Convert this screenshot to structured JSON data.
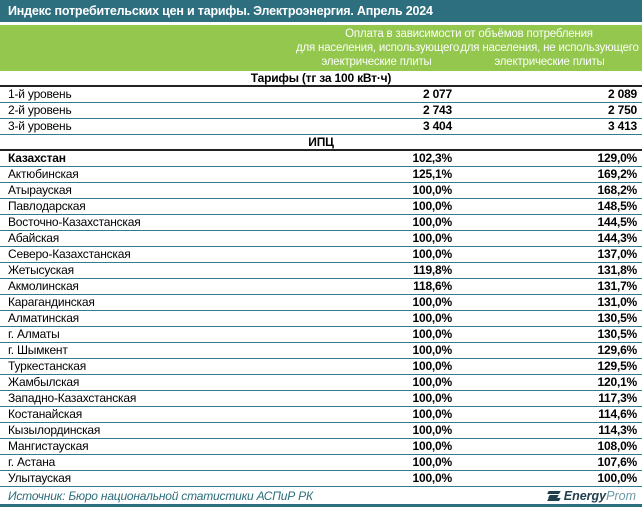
{
  "title_bar": {
    "title": "Индекс потребительских цен и тарифы. Электроэнергия. Апрель 2024"
  },
  "chart_data": {
    "type": "table",
    "title": "Индекс потребительских цен и тарифы. Электроэнергия. Апрель 2024",
    "column_group_label": "Оплата в зависимости от объёмов потребления",
    "columns": [
      {
        "line1": "для населения, использующего",
        "line2": "электрические плиты"
      },
      {
        "line1": "для населения, не использующего",
        "line2": "электрические плиты"
      }
    ],
    "sections": [
      {
        "title": "Тарифы (тг за 100 кВт·ч)",
        "rows": [
          {
            "name": "1-й уровень",
            "v1": "2 077",
            "v2": "2 089"
          },
          {
            "name": "2-й уровень",
            "v1": "2 743",
            "v2": "2 750"
          },
          {
            "name": "3-й уровень",
            "v1": "3 404",
            "v2": "3 413"
          }
        ]
      },
      {
        "title": "ИПЦ",
        "rows": [
          {
            "name": "Казахстан",
            "v1": "102,3%",
            "v2": "129,0%"
          },
          {
            "name": "Актюбинская",
            "v1": "125,1%",
            "v2": "169,2%"
          },
          {
            "name": "Атырауская",
            "v1": "100,0%",
            "v2": "168,2%"
          },
          {
            "name": "Павлодарская",
            "v1": "100,0%",
            "v2": "148,5%"
          },
          {
            "name": "Восточно-Казахстанская",
            "v1": "100,0%",
            "v2": "144,5%"
          },
          {
            "name": "Абайская",
            "v1": "100,0%",
            "v2": "144,3%"
          },
          {
            "name": "Северо-Казахстанская",
            "v1": "100,0%",
            "v2": "137,0%"
          },
          {
            "name": "Жетысуская",
            "v1": "119,8%",
            "v2": "131,8%"
          },
          {
            "name": "Акмолинская",
            "v1": "118,6%",
            "v2": "131,7%"
          },
          {
            "name": "Карагандинская",
            "v1": "100,0%",
            "v2": "131,0%"
          },
          {
            "name": "Алматинская",
            "v1": "100,0%",
            "v2": "130,5%"
          },
          {
            "name": "г. Алматы",
            "v1": "100,0%",
            "v2": "130,5%"
          },
          {
            "name": "г. Шымкент",
            "v1": "100,0%",
            "v2": "129,6%"
          },
          {
            "name": "Туркестанская",
            "v1": "100,0%",
            "v2": "129,5%"
          },
          {
            "name": "Жамбылская",
            "v1": "100,0%",
            "v2": "120,1%"
          },
          {
            "name": "Западно-Казахстанская",
            "v1": "100,0%",
            "v2": "117,3%"
          },
          {
            "name": "Костанайская",
            "v1": "100,0%",
            "v2": "114,6%"
          },
          {
            "name": "Кызылординская",
            "v1": "100,0%",
            "v2": "114,3%"
          },
          {
            "name": "Мангистауская",
            "v1": "100,0%",
            "v2": "108,0%"
          },
          {
            "name": "г. Астана",
            "v1": "100,0%",
            "v2": "107,6%"
          },
          {
            "name": "Улытауская",
            "v1": "100,0%",
            "v2": "100,0%"
          }
        ]
      }
    ],
    "layout": {
      "grid": "horizontal row separators",
      "value_alignment": "right"
    }
  },
  "footer": {
    "source": "Источник: Бюро национальной статистики АСПиР РК",
    "logo": {
      "bold_part": "Energy",
      "light_part": "Prom"
    }
  },
  "colors": {
    "title_bar_bg": "#2D6F7F",
    "green_header_bg": "#93C74E",
    "row_separator": "#2F7D93",
    "section_separator": "#222222",
    "source_text": "#2C6D7C",
    "logo_dark": "#20404F",
    "logo_light": "#6E99A6"
  }
}
